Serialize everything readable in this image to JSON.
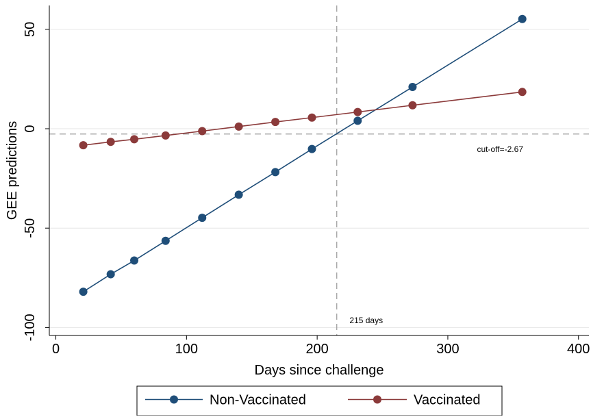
{
  "chart_data": {
    "type": "line",
    "title": "",
    "xlabel": "Days since challenge",
    "ylabel": "GEE predictions",
    "xlim": [
      -5,
      408
    ],
    "ylim": [
      -104,
      62
    ],
    "x_ticks": [
      0,
      100,
      200,
      300,
      400
    ],
    "y_ticks": [
      50,
      0,
      -50,
      -100
    ],
    "grid": true,
    "legend": "bottom",
    "series": [
      {
        "name": "Non-Vaccinated",
        "color": "#1f4e79",
        "x": [
          21,
          42,
          60,
          84,
          112,
          140,
          168,
          196,
          231,
          273,
          357
        ],
        "y": [
          -82,
          -73.2,
          -66.3,
          -56.4,
          -44.8,
          -33.2,
          -21.8,
          -10.2,
          4,
          21,
          55.2
        ]
      },
      {
        "name": "Vaccinated",
        "color": "#8b3a3a",
        "x": [
          21,
          42,
          60,
          84,
          112,
          140,
          168,
          196,
          231,
          273,
          357
        ],
        "y": [
          -8.3,
          -6.6,
          -5.3,
          -3.4,
          -1.2,
          1.1,
          3.4,
          5.6,
          8.4,
          11.8,
          18.5
        ]
      }
    ],
    "annotations": {
      "hline": {
        "y": -2.67,
        "label": "cut-off=-2.67"
      },
      "vline": {
        "x": 215,
        "label": "215 days"
      }
    }
  }
}
